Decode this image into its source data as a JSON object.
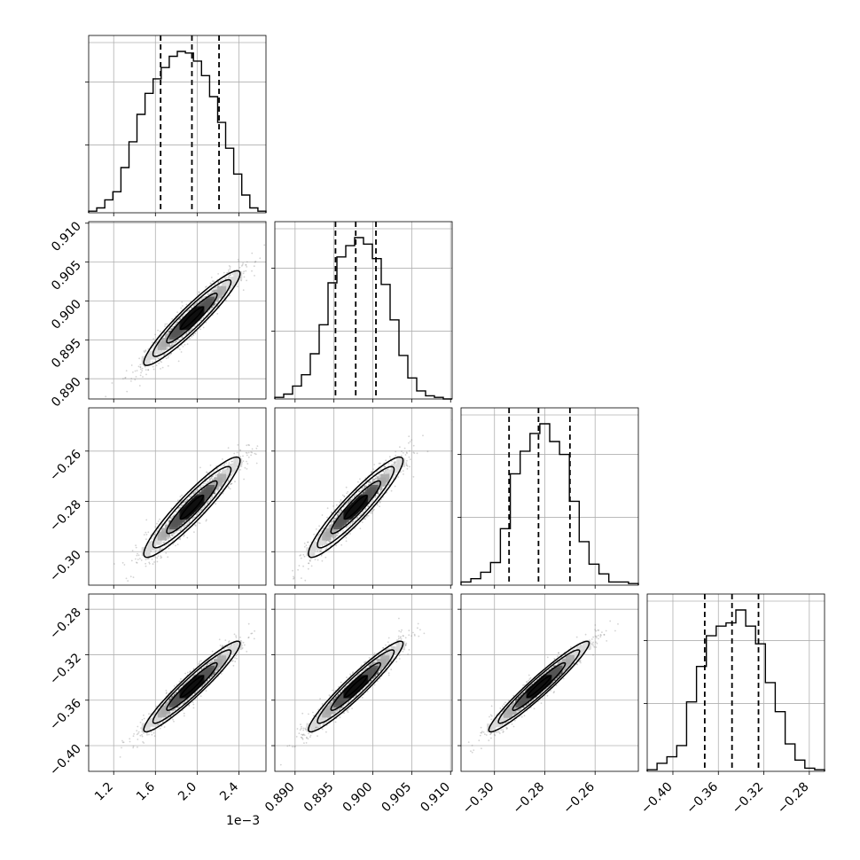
{
  "chart_data": {
    "type": "corner",
    "grid": true,
    "parameters": [
      {
        "range": [
          0.00096,
          0.00266
        ],
        "ticks": [
          0.0012,
          0.0016,
          0.002,
          0.0024
        ],
        "tick_labels": [
          "1.2",
          "1.6",
          "2.0",
          "2.4"
        ],
        "offset_label": "1e−3"
      },
      {
        "range": [
          0.8874,
          0.9102
        ],
        "ticks": [
          0.89,
          0.895,
          0.9,
          0.905,
          0.91
        ],
        "tick_labels": [
          "0.890",
          "0.895",
          "0.900",
          "0.905",
          "0.910"
        ],
        "offset_label": ""
      },
      {
        "range": [
          -0.3133,
          -0.2428
        ],
        "ticks": [
          -0.3,
          -0.28,
          -0.26
        ],
        "tick_labels": [
          "−0.30",
          "−0.28",
          "−0.26"
        ],
        "offset_label": ""
      },
      {
        "range": [
          -0.4226,
          -0.2666
        ],
        "ticks": [
          -0.4,
          -0.36,
          -0.32,
          -0.28
        ],
        "tick_labels": [
          "−0.40",
          "−0.36",
          "−0.32",
          "−0.28"
        ],
        "offset_label": ""
      }
    ],
    "histograms": [
      {
        "counts": [
          0.01,
          0.03,
          0.08,
          0.13,
          0.28,
          0.44,
          0.61,
          0.74,
          0.83,
          0.9,
          0.97,
          1.0,
          0.99,
          0.94,
          0.85,
          0.72,
          0.56,
          0.4,
          0.24,
          0.11,
          0.03,
          0.01
        ],
        "quantiles": [
          0.00165,
          0.00195,
          0.00221
        ]
      },
      {
        "counts": [
          0.01,
          0.03,
          0.08,
          0.15,
          0.28,
          0.46,
          0.72,
          0.88,
          0.95,
          1.0,
          0.96,
          0.87,
          0.71,
          0.49,
          0.27,
          0.13,
          0.05,
          0.02,
          0.01,
          0.0
        ],
        "quantiles": [
          0.8952,
          0.8978,
          0.9004
        ]
      },
      {
        "counts": [
          0.02,
          0.04,
          0.08,
          0.14,
          0.35,
          0.69,
          0.83,
          0.94,
          1.0,
          0.89,
          0.81,
          0.52,
          0.27,
          0.13,
          0.07,
          0.02,
          0.02,
          0.01
        ],
        "quantiles": [
          -0.2942,
          -0.2825,
          -0.27
        ]
      },
      {
        "counts": [
          0.01,
          0.05,
          0.09,
          0.16,
          0.43,
          0.65,
          0.84,
          0.9,
          0.92,
          1.0,
          0.9,
          0.79,
          0.55,
          0.37,
          0.17,
          0.07,
          0.02,
          0.01
        ],
        "quantiles": [
          -0.372,
          -0.348,
          -0.3247
        ]
      }
    ],
    "correlations": [
      {
        "pair": [
          1,
          0
        ],
        "corr": 0.94,
        "mean": [
          0.00195,
          0.8978
        ],
        "std": [
          0.00022,
          0.0029
        ]
      },
      {
        "pair": [
          2,
          0
        ],
        "corr": 0.93,
        "mean": [
          0.00195,
          -0.2823
        ],
        "std": [
          0.00022,
          0.0095
        ]
      },
      {
        "pair": [
          2,
          1
        ],
        "corr": 0.93,
        "mean": [
          0.8978,
          -0.2823
        ],
        "std": [
          0.0029,
          0.0095
        ]
      },
      {
        "pair": [
          3,
          0
        ],
        "corr": 0.95,
        "mean": [
          0.00195,
          -0.348
        ],
        "std": [
          0.00022,
          0.019
        ]
      },
      {
        "pair": [
          3,
          1
        ],
        "corr": 0.95,
        "mean": [
          0.8978,
          -0.348
        ],
        "std": [
          0.0029,
          0.019
        ]
      },
      {
        "pair": [
          3,
          2
        ],
        "corr": 0.96,
        "mean": [
          -0.2823,
          -0.348
        ],
        "std": [
          0.0095,
          0.019
        ]
      }
    ],
    "line_color": "#000000",
    "sample_color": "#808080"
  }
}
